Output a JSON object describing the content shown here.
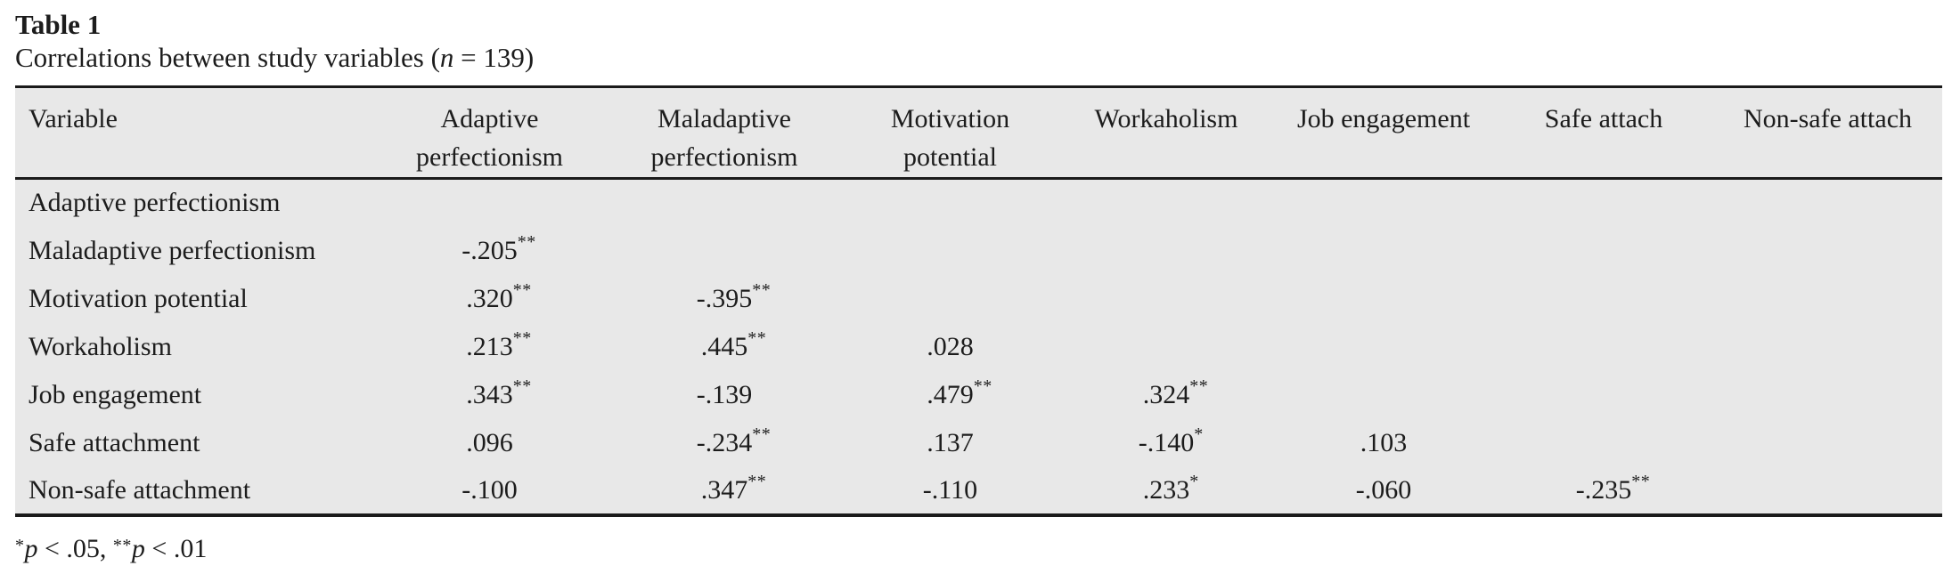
{
  "caption": {
    "label": "Table 1",
    "description": "Correlations between study variables (n = 139)"
  },
  "table": {
    "columns": [
      "Variable",
      "Adaptive\nperfectionism",
      "Maladaptive\nperfectionism",
      "Motivation\npotential",
      "Workaholism",
      "Job engagement",
      "Safe attach",
      "Non-safe attach"
    ],
    "rows": [
      {
        "label": "Adaptive perfectionism",
        "values": []
      },
      {
        "label": "Maladaptive perfectionism",
        "values": [
          "-.205**"
        ]
      },
      {
        "label": "Motivation potential",
        "values": [
          ".320**",
          "-.395**"
        ]
      },
      {
        "label": "Workaholism",
        "values": [
          ".213**",
          ".445**",
          ".028"
        ]
      },
      {
        "label": "Job engagement",
        "values": [
          ".343**",
          "-.139",
          ".479**",
          ".324**"
        ]
      },
      {
        "label": "Safe attachment",
        "values": [
          ".096",
          "-.234**",
          ".137",
          "-.140*",
          ".103"
        ]
      },
      {
        "label": "Non-safe attachment",
        "values": [
          "-.100",
          ".347**",
          "-.110",
          ".233*",
          "-.060",
          "-.235**"
        ]
      }
    ]
  },
  "footnote": "*p < .05, **p < .01",
  "sample_size": "139",
  "colors": {
    "table_background": "#e8e8e8",
    "rule": "#1a1a1a",
    "text": "#1c1c1c"
  }
}
